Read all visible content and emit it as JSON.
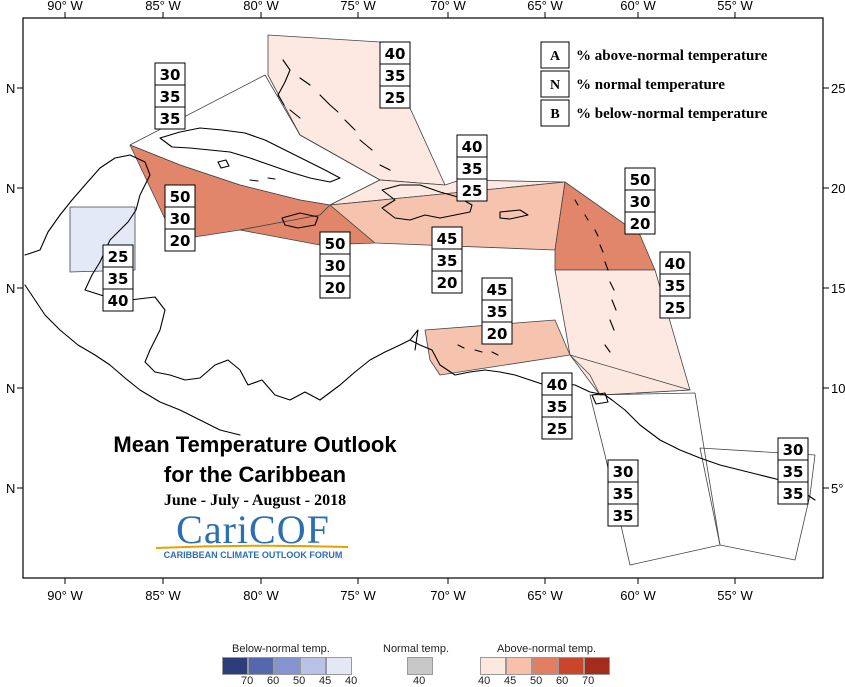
{
  "map": {
    "axis_top_labels": [
      "90° W",
      "85° W",
      "80° W",
      "75° W",
      "70° W",
      "65° W",
      "60° W",
      "55° W"
    ],
    "axis_bottom_labels": [
      "90° W",
      "85° W",
      "80° W",
      "75° W",
      "70° W",
      "65° W",
      "60° W",
      "55° W"
    ],
    "axis_left_labels": [
      "N",
      "N",
      "N",
      "N",
      "N"
    ],
    "axis_right_labels": [
      "25",
      "20",
      "15",
      "10",
      "5°"
    ],
    "colors": {
      "above_40": "#fde8df",
      "above_45": "#f6c0aa",
      "above_50": "#e07f63",
      "above_60": "#c9452c",
      "above_70": "#a32c1d",
      "below_40": "#e2e8f6",
      "normal": "#c8c8c8"
    }
  },
  "legend": {
    "rows": [
      {
        "letter": "A",
        "text": "% above-normal temperature"
      },
      {
        "letter": "N",
        "text": "% normal temperature"
      },
      {
        "letter": "B",
        "text": "% below-normal temperature"
      }
    ]
  },
  "regions": [
    {
      "id": "bahamas",
      "values": [
        "40",
        "35",
        "25"
      ],
      "level": "above_40"
    },
    {
      "id": "cuba",
      "values": [
        "30",
        "35",
        "35"
      ],
      "level": "none"
    },
    {
      "id": "cayman-jamaica",
      "values": [
        "50",
        "30",
        "20"
      ],
      "level": "above_50"
    },
    {
      "id": "jamaica-south",
      "values": [
        "50",
        "30",
        "20"
      ],
      "level": "above_50"
    },
    {
      "id": "belize",
      "values": [
        "25",
        "35",
        "40"
      ],
      "level": "below_40"
    },
    {
      "id": "turks-caicos",
      "values": [
        "40",
        "35",
        "25"
      ],
      "level": "above_40"
    },
    {
      "id": "hispaniola-pr",
      "values": [
        "45",
        "35",
        "20"
      ],
      "level": "above_45"
    },
    {
      "id": "leeward-islands",
      "values": [
        "50",
        "30",
        "20"
      ],
      "level": "above_50"
    },
    {
      "id": "windward-islands",
      "values": [
        "40",
        "35",
        "25"
      ],
      "level": "above_40"
    },
    {
      "id": "abc-islands",
      "values": [
        "45",
        "35",
        "20"
      ],
      "level": "above_45"
    },
    {
      "id": "trinidad",
      "values": [
        "40",
        "35",
        "25"
      ],
      "level": "above_40"
    },
    {
      "id": "guyana",
      "values": [
        "30",
        "35",
        "35"
      ],
      "level": "none"
    },
    {
      "id": "suriname-guiana",
      "values": [
        "30",
        "35",
        "35"
      ],
      "level": "none"
    }
  ],
  "title": {
    "line1": "Mean Temperature Outlook",
    "line2": "for the Caribbean",
    "subtitle": "June - July - August - 2018"
  },
  "logo": {
    "name": "CariCOF",
    "tagline": "CARIBBEAN CLIMATE OUTLOOK FORUM"
  },
  "colorbar": {
    "below_label": "Below-normal temp.",
    "normal_label": "Normal temp.",
    "above_label": "Above-normal temp.",
    "below_ticks": [
      "70",
      "60",
      "50",
      "45",
      "40"
    ],
    "normal_ticks": [
      "40"
    ],
    "above_ticks": [
      "40",
      "45",
      "50",
      "60",
      "70"
    ],
    "below_colors": [
      "#2c3e7a",
      "#5468b0",
      "#8593cf",
      "#b8c1e6",
      "#e4e8f6"
    ],
    "normal_colors": [
      "#c8c8c8"
    ],
    "above_colors": [
      "#fde8df",
      "#f6c0aa",
      "#e07f63",
      "#c9452c",
      "#a32c1d"
    ]
  }
}
